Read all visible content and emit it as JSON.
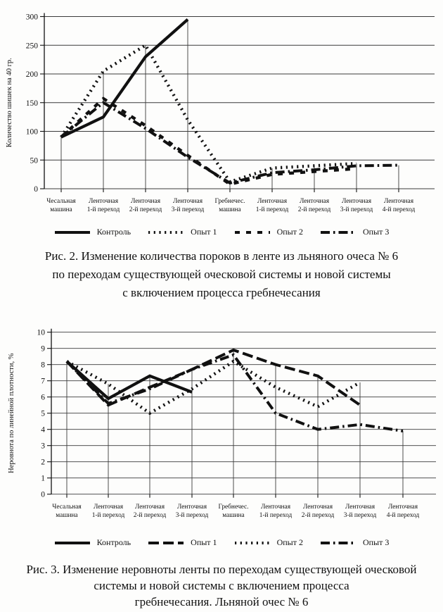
{
  "page": {
    "background": "#fdfdfc",
    "ink": "#111111",
    "grid_color": "#3a3a3a"
  },
  "chart_data": [
    {
      "type": "line",
      "figure_label": "Рис. 2",
      "title": "",
      "xlabel": "",
      "ylabel": "Количество шишек на 40 гр.",
      "ylim": [
        0,
        300
      ],
      "ytick_step": 50,
      "grid": true,
      "legend_position": "bottom",
      "categories": [
        "Чесальная\nмашина",
        "Ленточная\n1-й переход",
        "Ленточная\n2-й переход",
        "Ленточная\n3-й переход",
        "Гребнечес.\nмашина",
        "Ленточная\n1-й переход",
        "Ленточная\n2-й переход",
        "Ленточная\n3-й переход",
        "Ленточная\n4-й переход"
      ],
      "series": [
        {
          "name": "Контроль",
          "style": "solid",
          "values": [
            90,
            125,
            230,
            295,
            null,
            null,
            null,
            null,
            null
          ]
        },
        {
          "name": "Опыт 1",
          "style": "dotted",
          "values": [
            90,
            205,
            250,
            120,
            12,
            36,
            40,
            44,
            null
          ]
        },
        {
          "name": "Опыт 2",
          "style": "sqdash",
          "values": [
            90,
            157,
            110,
            58,
            8,
            25,
            30,
            35,
            null
          ]
        },
        {
          "name": "Опыт 3",
          "style": "dashdot",
          "values": [
            90,
            150,
            105,
            55,
            10,
            28,
            33,
            40,
            41
          ]
        }
      ],
      "caption_lines": [
        "Рис. 2. Изменение количества пороков в ленте из льняного очеса № 6",
        "по переходам существующей оческовой системы и новой системы",
        "с включением процесса гребнечесания"
      ]
    },
    {
      "type": "line",
      "figure_label": "Рис. 3",
      "title": "",
      "xlabel": "",
      "ylabel": "Неровнота по линейной плотности, %",
      "ylim": [
        0,
        10
      ],
      "ytick_step": 1,
      "grid": true,
      "legend_position": "bottom",
      "categories": [
        "Чесальная\nмашина",
        "Ленточная\n1-й переход",
        "Ленточная\n2-й переход",
        "Ленточная\n3-й переход",
        "Гребнечес.\nмашина",
        "Ленточная\n1-й переход",
        "Ленточная\n2-й переход",
        "Ленточная\n3-й переход",
        "Ленточная\n4-й переход"
      ],
      "series": [
        {
          "name": "Контроль",
          "style": "solid",
          "values": [
            8.2,
            5.9,
            7.3,
            6.3,
            null,
            null,
            null,
            null,
            null
          ]
        },
        {
          "name": "Опыт 1",
          "style": "longdash",
          "values": [
            8.2,
            5.5,
            6.6,
            7.7,
            8.9,
            8.0,
            7.3,
            5.5,
            null
          ]
        },
        {
          "name": "Опыт 2",
          "style": "dotted",
          "values": [
            8.2,
            6.8,
            5.0,
            6.5,
            8.2,
            6.6,
            5.4,
            6.9,
            null
          ]
        },
        {
          "name": "Опыт 3",
          "style": "dashdot",
          "values": [
            8.2,
            5.6,
            6.5,
            7.7,
            8.6,
            5.0,
            4.0,
            4.3,
            3.9
          ]
        }
      ],
      "caption_lines": [
        "Рис. 3. Изменение неровноты ленты по переходам существующей оческовой",
        "системы и новой системы с включением процесса",
        "гребнечесания. Льняной очес № 6"
      ]
    }
  ]
}
